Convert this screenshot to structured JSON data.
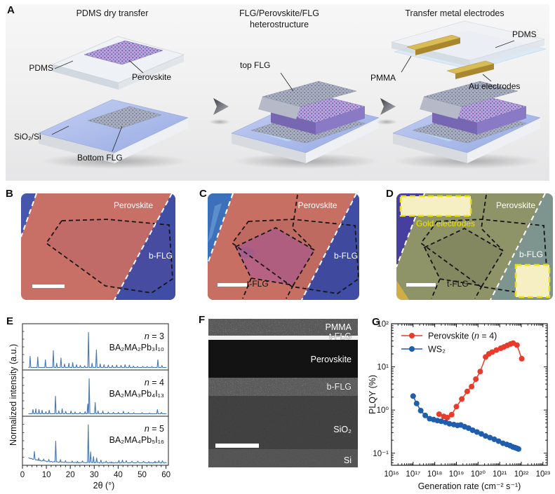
{
  "panel_a": {
    "label": "A",
    "steps": [
      {
        "title": "PDMS dry transfer",
        "labels": {
          "pdms": "PDMS",
          "perovskite": "Perovskite",
          "substrate": "SiO₂/Si",
          "bottom_flg": "Bottom FLG"
        }
      },
      {
        "title": "FLG/Perovskite/FLG\nheterostructure",
        "labels": {
          "top_flg": "top FLG"
        }
      },
      {
        "title": "Transfer metal electrodes",
        "labels": {
          "pdms": "PDMS",
          "pmma": "PMMA",
          "au_electrodes": "Au electrodes"
        }
      }
    ]
  },
  "panel_b": {
    "label": "B",
    "annotations": {
      "perovskite": "Perovskite",
      "b_flg": "b-FLG"
    }
  },
  "panel_c": {
    "label": "C",
    "annotations": {
      "perovskite": "Perovskite",
      "b_flg": "b-FLG",
      "t_flg": "t-FLG"
    }
  },
  "panel_d": {
    "label": "D",
    "annotations": {
      "gold_electrodes": "Gold electrodes",
      "perovskite": "Perovskite",
      "b_flg": "b-FLG",
      "t_flg": "t-FLG"
    }
  },
  "panel_e": {
    "label": "E",
    "ylabel": "Normalized intensity (a.u.)",
    "xlabel": "2θ (°)"
  },
  "panel_f": {
    "label": "F",
    "layers": [
      "PMMA",
      "t-FLG",
      "Perovskite",
      "b-FLG",
      "SiO₂",
      "Si"
    ]
  },
  "panel_g": {
    "label": "G",
    "ylabel": "PLQY (%)",
    "xlabel": "Generation rate (cm⁻² s⁻¹)"
  },
  "colors": {
    "xrd_line": "#4678b4",
    "perovskite_series": "#e73b2b",
    "ws2_series": "#1f5dad",
    "perovskite_flake": "#c97066",
    "b_flg_flake": "#3f4da5",
    "gold_pad": "#f6efc3"
  },
  "chart_data": [
    {
      "panel": "E",
      "type": "line",
      "xlabel": "2θ (°)",
      "ylabel": "Normalized intensity (a.u.)",
      "xlim": [
        0,
        61
      ],
      "xticks": [
        0,
        10,
        20,
        30,
        40,
        50,
        60
      ],
      "grid": false,
      "series": [
        {
          "name_var": "n",
          "name_rest": " = 3",
          "formula": "BA₂MA₂Pb₃I₁₀",
          "color": "#4678b4",
          "baseline": null,
          "peaks": [
            [
              3.2,
              0.32
            ],
            [
              6.4,
              0.3
            ],
            [
              9.6,
              0.22
            ],
            [
              12.9,
              0.48
            ],
            [
              14.3,
              0.12
            ],
            [
              16.1,
              0.27
            ],
            [
              17.6,
              0.1
            ],
            [
              19.4,
              0.12
            ],
            [
              21.0,
              0.14
            ],
            [
              22.6,
              0.08
            ],
            [
              24.2,
              0.06
            ],
            [
              26.0,
              0.05
            ],
            [
              27.6,
              1.0
            ],
            [
              29.1,
              0.12
            ],
            [
              30.9,
              0.5
            ],
            [
              32.5,
              0.1
            ],
            [
              34.1,
              0.08
            ],
            [
              35.9,
              0.07
            ],
            [
              37.6,
              0.06
            ],
            [
              39.4,
              0.07
            ],
            [
              41.2,
              0.06
            ],
            [
              42.9,
              0.08
            ],
            [
              44.7,
              0.07
            ],
            [
              46.4,
              0.04
            ],
            [
              48.1,
              0.03
            ],
            [
              50.3,
              0.03
            ],
            [
              52.1,
              0.03
            ],
            [
              54.1,
              0.03
            ],
            [
              56.6,
              0.22
            ],
            [
              58.3,
              0.06
            ]
          ]
        },
        {
          "name_var": "n",
          "name_rest": " = 4",
          "formula": "BA₂MA₃Pb₄I₁₃",
          "color": "#4678b4",
          "baseline": null,
          "peaks": [
            [
              4.4,
              0.12
            ],
            [
              5.6,
              0.14
            ],
            [
              6.9,
              0.12
            ],
            [
              8.2,
              0.1
            ],
            [
              9.8,
              0.06
            ],
            [
              11.2,
              0.1
            ],
            [
              13.8,
              0.5
            ],
            [
              15.2,
              0.08
            ],
            [
              16.6,
              0.14
            ],
            [
              18.1,
              0.07
            ],
            [
              20.3,
              0.08
            ],
            [
              22.0,
              0.05
            ],
            [
              24.1,
              0.04
            ],
            [
              26.2,
              0.06
            ],
            [
              27.3,
              0.28
            ],
            [
              27.9,
              1.0
            ],
            [
              30.4,
              0.32
            ],
            [
              31.6,
              0.08
            ],
            [
              33.6,
              0.08
            ],
            [
              35.9,
              0.05
            ],
            [
              38.0,
              0.04
            ],
            [
              40.1,
              0.04
            ],
            [
              42.2,
              0.07
            ],
            [
              44.3,
              0.04
            ],
            [
              46.5,
              0.03
            ],
            [
              50.0,
              0.03
            ],
            [
              53.1,
              0.02
            ],
            [
              56.4,
              0.12
            ],
            [
              58.1,
              0.04
            ]
          ]
        },
        {
          "name_var": "n",
          "name_rest": " = 5",
          "formula": "BA₂MA₄Pb₅I₁₆",
          "color": "#4678b4",
          "baseline": {
            "amp": 0.13,
            "decay": 6.0,
            "noise": 0.012
          },
          "peaks": [
            [
              5.0,
              0.2
            ],
            [
              6.8,
              0.07
            ],
            [
              8.9,
              0.05
            ],
            [
              11.0,
              0.05
            ],
            [
              13.9,
              0.55
            ],
            [
              15.9,
              0.07
            ],
            [
              18.0,
              0.05
            ],
            [
              20.8,
              0.04
            ],
            [
              23.0,
              0.04
            ],
            [
              25.1,
              0.04
            ],
            [
              27.5,
              1.0
            ],
            [
              28.5,
              0.28
            ],
            [
              29.7,
              0.16
            ],
            [
              31.0,
              0.12
            ],
            [
              32.8,
              0.07
            ],
            [
              35.0,
              0.04
            ],
            [
              37.2,
              0.03
            ],
            [
              40.3,
              0.06
            ],
            [
              41.8,
              0.07
            ],
            [
              43.4,
              0.05
            ],
            [
              45.8,
              0.03
            ],
            [
              48.2,
              0.03
            ],
            [
              50.6,
              0.03
            ],
            [
              52.8,
              0.03
            ],
            [
              55.4,
              0.04
            ],
            [
              57.0,
              0.05
            ],
            [
              58.5,
              0.04
            ]
          ]
        }
      ]
    },
    {
      "panel": "G",
      "type": "scatter",
      "xscale": "log",
      "yscale": "log",
      "xlabel": "Generation rate (cm⁻² s⁻¹)",
      "ylabel": "PLQY (%)",
      "xlim_exp": [
        16,
        23.2
      ],
      "ylim_exp": [
        -1.28,
        2
      ],
      "xtick_exponents": [
        16,
        17,
        18,
        19,
        20,
        21,
        22,
        23
      ],
      "xtick_labels": [
        "10¹⁶",
        "10¹⁷",
        "10¹⁸",
        "10¹⁹",
        "10²⁰",
        "10²¹",
        "10²²",
        "10²³"
      ],
      "ytick_exponents": [
        -1,
        0,
        1,
        2
      ],
      "ytick_labels": [
        "10⁻¹",
        "10⁰",
        "10¹",
        "10²"
      ],
      "legend_position": "top-left",
      "series": [
        {
          "name_pre": "Perovskite (",
          "name_italic": "n",
          "name_post": " = 4)",
          "color": "#e73b2b",
          "points_exp_pct": [
            [
              18.2,
              0.8
            ],
            [
              18.42,
              0.71
            ],
            [
              18.58,
              0.67
            ],
            [
              18.78,
              0.78
            ],
            [
              19.0,
              1.2
            ],
            [
              19.25,
              1.8
            ],
            [
              19.5,
              2.7
            ],
            [
              19.7,
              3.5
            ],
            [
              19.9,
              5.2
            ],
            [
              20.1,
              7.8
            ],
            [
              20.35,
              17
            ],
            [
              20.5,
              20
            ],
            [
              20.65,
              22
            ],
            [
              20.85,
              24.5
            ],
            [
              21.05,
              27
            ],
            [
              21.2,
              29
            ],
            [
              21.35,
              31.5
            ],
            [
              21.5,
              34
            ],
            [
              21.62,
              35.5
            ],
            [
              21.8,
              32
            ],
            [
              22.02,
              15.5
            ]
          ]
        },
        {
          "name_pre": "WS₂",
          "name_italic": "",
          "name_post": "",
          "color": "#1f5dad",
          "points_exp_pct": [
            [
              17.0,
              2.1
            ],
            [
              17.16,
              1.42
            ],
            [
              17.35,
              0.97
            ],
            [
              17.56,
              0.75
            ],
            [
              17.76,
              0.63
            ],
            [
              17.95,
              0.6
            ],
            [
              18.12,
              0.57
            ],
            [
              18.3,
              0.55
            ],
            [
              18.5,
              0.52
            ],
            [
              18.68,
              0.48
            ],
            [
              18.88,
              0.46
            ],
            [
              19.05,
              0.44
            ],
            [
              19.2,
              0.45
            ],
            [
              19.38,
              0.41
            ],
            [
              19.56,
              0.38
            ],
            [
              19.75,
              0.34
            ],
            [
              19.95,
              0.31
            ],
            [
              20.15,
              0.28
            ],
            [
              20.35,
              0.25
            ],
            [
              20.55,
              0.23
            ],
            [
              20.75,
              0.21
            ],
            [
              20.95,
              0.19
            ],
            [
              21.15,
              0.17
            ],
            [
              21.33,
              0.16
            ],
            [
              21.48,
              0.15
            ],
            [
              21.6,
              0.14
            ],
            [
              21.7,
              0.135
            ],
            [
              21.79,
              0.13
            ],
            [
              21.87,
              0.125
            ]
          ]
        }
      ]
    }
  ]
}
